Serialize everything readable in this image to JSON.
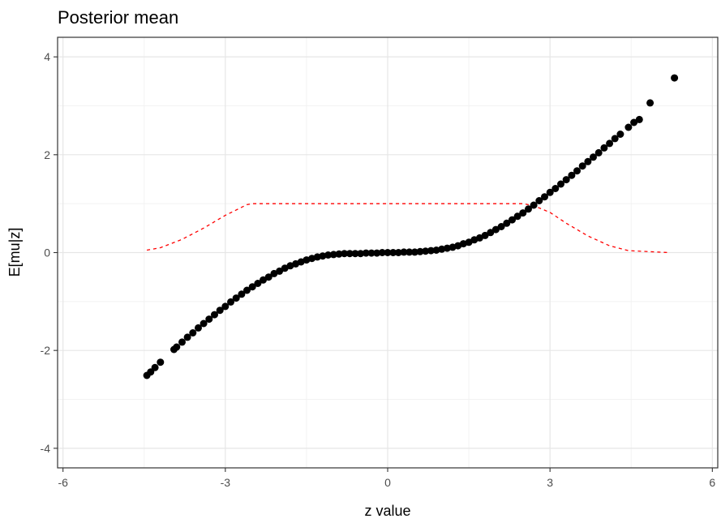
{
  "chart_data": {
    "type": "scatter",
    "title": "Posterior mean",
    "xlabel": "z value",
    "ylabel": "E[mu|z]",
    "xlim": [
      -6.1,
      6.1
    ],
    "ylim": [
      -4.4,
      4.4
    ],
    "x_ticks": [
      -6,
      -3,
      0,
      3,
      6
    ],
    "x_tick_labels": [
      "-6",
      "-3",
      "0",
      "3",
      "6"
    ],
    "y_ticks": [
      -4,
      -2,
      0,
      2,
      4
    ],
    "y_tick_labels": [
      "-4",
      "-2",
      "0",
      "2",
      "4"
    ],
    "x_minor_ticks": [
      -4.5,
      -1.5,
      1.5,
      4.5
    ],
    "y_minor_ticks": [
      -3,
      -1,
      1,
      3
    ],
    "grid": true,
    "legend": "none",
    "series": [
      {
        "style": "points",
        "color": "#000000",
        "points": [
          [
            -4.45,
            -2.51
          ],
          [
            -4.38,
            -2.44
          ],
          [
            -4.3,
            -2.35
          ],
          [
            -4.2,
            -2.24
          ],
          [
            -3.95,
            -1.98
          ],
          [
            -3.9,
            -1.93
          ],
          [
            -3.8,
            -1.83
          ],
          [
            -3.7,
            -1.73
          ],
          [
            -3.6,
            -1.64
          ],
          [
            -3.5,
            -1.54
          ],
          [
            -3.4,
            -1.45
          ],
          [
            -3.3,
            -1.36
          ],
          [
            -3.2,
            -1.27
          ],
          [
            -3.1,
            -1.18
          ],
          [
            -3.0,
            -1.1
          ],
          [
            -2.9,
            -1.01
          ],
          [
            -2.8,
            -0.93
          ],
          [
            -2.7,
            -0.85
          ],
          [
            -2.6,
            -0.77
          ],
          [
            -2.5,
            -0.7
          ],
          [
            -2.4,
            -0.63
          ],
          [
            -2.3,
            -0.56
          ],
          [
            -2.2,
            -0.5
          ],
          [
            -2.1,
            -0.43
          ],
          [
            -2.0,
            -0.38
          ],
          [
            -1.9,
            -0.32
          ],
          [
            -1.8,
            -0.27
          ],
          [
            -1.7,
            -0.23
          ],
          [
            -1.6,
            -0.19
          ],
          [
            -1.5,
            -0.15
          ],
          [
            -1.4,
            -0.12
          ],
          [
            -1.3,
            -0.09
          ],
          [
            -1.2,
            -0.07
          ],
          [
            -1.1,
            -0.05
          ],
          [
            -1.0,
            -0.04
          ],
          [
            -0.9,
            -0.03
          ],
          [
            -0.8,
            -0.02
          ],
          [
            -0.7,
            -0.02
          ],
          [
            -0.6,
            -0.02
          ],
          [
            -0.5,
            -0.02
          ],
          [
            -0.4,
            -0.01
          ],
          [
            -0.3,
            -0.01
          ],
          [
            -0.2,
            -0.01
          ],
          [
            -0.1,
            0.0
          ],
          [
            0.0,
            0.0
          ],
          [
            0.1,
            0.0
          ],
          [
            0.2,
            0.0
          ],
          [
            0.3,
            0.01
          ],
          [
            0.4,
            0.01
          ],
          [
            0.5,
            0.01
          ],
          [
            0.6,
            0.02
          ],
          [
            0.7,
            0.03
          ],
          [
            0.8,
            0.04
          ],
          [
            0.9,
            0.05
          ],
          [
            1.0,
            0.07
          ],
          [
            1.1,
            0.09
          ],
          [
            1.2,
            0.11
          ],
          [
            1.3,
            0.14
          ],
          [
            1.4,
            0.18
          ],
          [
            1.5,
            0.21
          ],
          [
            1.6,
            0.26
          ],
          [
            1.7,
            0.3
          ],
          [
            1.8,
            0.35
          ],
          [
            1.9,
            0.41
          ],
          [
            2.0,
            0.47
          ],
          [
            2.1,
            0.53
          ],
          [
            2.2,
            0.6
          ],
          [
            2.3,
            0.67
          ],
          [
            2.4,
            0.74
          ],
          [
            2.5,
            0.81
          ],
          [
            2.6,
            0.89
          ],
          [
            2.7,
            0.97
          ],
          [
            2.8,
            1.06
          ],
          [
            2.9,
            1.14
          ],
          [
            3.0,
            1.23
          ],
          [
            3.1,
            1.31
          ],
          [
            3.2,
            1.4
          ],
          [
            3.3,
            1.49
          ],
          [
            3.4,
            1.58
          ],
          [
            3.5,
            1.67
          ],
          [
            3.6,
            1.77
          ],
          [
            3.7,
            1.86
          ],
          [
            3.8,
            1.95
          ],
          [
            3.9,
            2.04
          ],
          [
            4.0,
            2.14
          ],
          [
            4.1,
            2.23
          ],
          [
            4.2,
            2.33
          ],
          [
            4.3,
            2.42
          ],
          [
            4.45,
            2.56
          ],
          [
            4.55,
            2.66
          ],
          [
            4.65,
            2.72
          ],
          [
            4.85,
            3.06
          ],
          [
            5.3,
            3.57
          ]
        ]
      },
      {
        "style": "dashed-line",
        "color": "#ff0000",
        "points": [
          [
            -4.45,
            0.05
          ],
          [
            -4.2,
            0.1
          ],
          [
            -3.8,
            0.27
          ],
          [
            -3.4,
            0.5
          ],
          [
            -3.0,
            0.76
          ],
          [
            -2.6,
            0.98
          ],
          [
            -2.5,
            1.0
          ],
          [
            2.5,
            1.0
          ],
          [
            2.7,
            0.96
          ],
          [
            3.0,
            0.82
          ],
          [
            3.3,
            0.6
          ],
          [
            3.7,
            0.34
          ],
          [
            4.1,
            0.14
          ],
          [
            4.45,
            0.04
          ],
          [
            5.2,
            0.0
          ]
        ]
      }
    ]
  }
}
